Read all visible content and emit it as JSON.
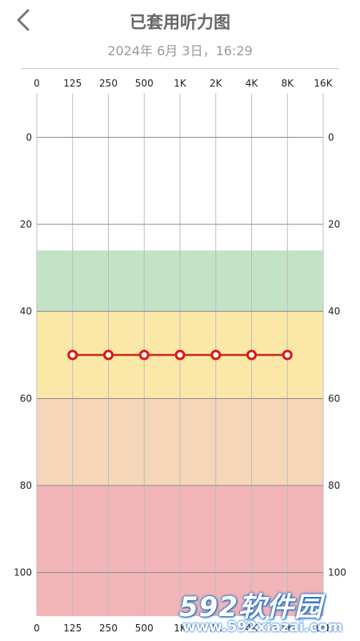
{
  "header": {
    "title": "已套用听力图",
    "subtitle": "2024年 6月 3日，16:29",
    "back_icon": "chevron-left-icon"
  },
  "colors": {
    "band_normal": "#c3e3c6",
    "band_mild": "#fbe8a9",
    "band_moderate": "#f5d6b8",
    "band_severe": "#f2b5b7",
    "line": "#c8281e",
    "point_stroke": "#e0150f",
    "grid": "#bdbdbd",
    "grid_major": "#8a8a8a"
  },
  "chart_data": {
    "type": "line",
    "title": "",
    "xlabel": "",
    "ylabel": "",
    "x_categories": [
      "0",
      "125",
      "250",
      "500",
      "1K",
      "2K",
      "4K",
      "8K",
      "16K"
    ],
    "y_ticks": [
      0,
      20,
      40,
      60,
      80,
      100
    ],
    "ylim": [
      -10,
      110
    ],
    "y_inverted": true,
    "grid": true,
    "bands": [
      {
        "from": 26,
        "to": 40,
        "color": "#c3e3c6"
      },
      {
        "from": 40,
        "to": 60,
        "color": "#fbe8a9"
      },
      {
        "from": 60,
        "to": 80,
        "color": "#f5d6b8"
      },
      {
        "from": 80,
        "to": 110,
        "color": "#f2b5b7"
      }
    ],
    "series": [
      {
        "x": [
          "125",
          "250",
          "500",
          "1K",
          "2K",
          "4K",
          "8K"
        ],
        "values": [
          50,
          50,
          50,
          50,
          50,
          50,
          50
        ]
      }
    ]
  },
  "watermark": {
    "brand": "592软件园",
    "url": "www.592xiazai.com"
  }
}
